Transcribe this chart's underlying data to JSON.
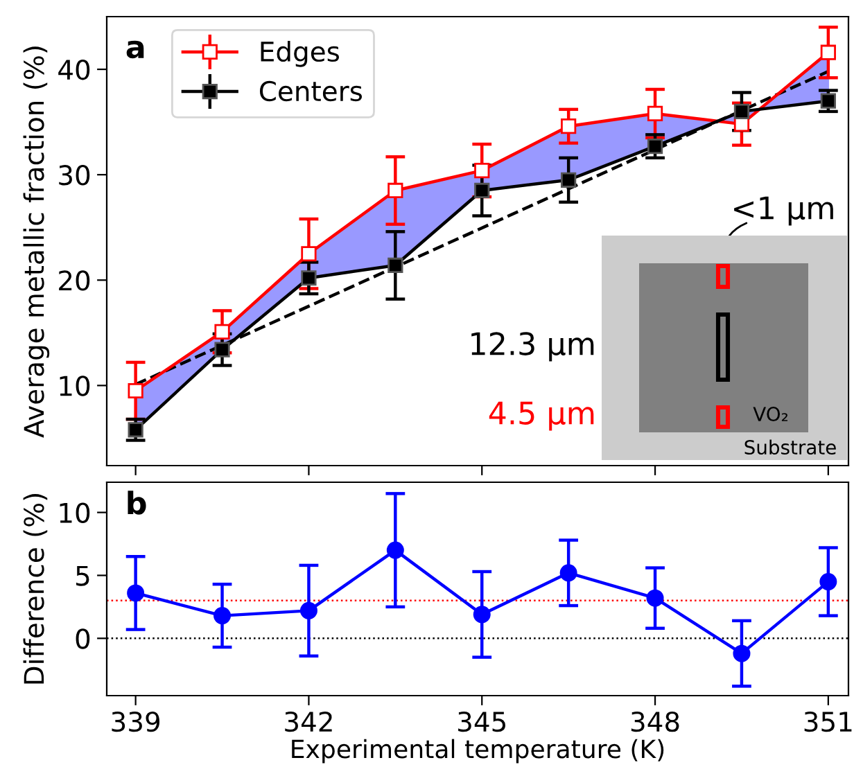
{
  "chart_data": [
    {
      "type": "line",
      "title": "a",
      "ylabel": "Average metallic fraction (%)",
      "x": [
        339,
        340.5,
        342,
        343.5,
        345,
        346.5,
        348,
        349.5,
        351
      ],
      "series": [
        {
          "type": "area",
          "color": "#9999ff",
          "values": [
            9.5,
            15.1,
            22.5,
            28.5,
            30.4,
            34.6,
            35.8,
            34.8,
            41.6
          ]
        },
        {
          "name": "Edges",
          "color": "#ff0000",
          "marker": "square",
          "values": [
            9.5,
            15.1,
            22.5,
            28.5,
            30.4,
            34.6,
            35.8,
            34.8,
            41.6
          ],
          "errors": [
            2.7,
            2.0,
            3.3,
            3.2,
            2.5,
            1.6,
            2.3,
            2.0,
            2.4
          ]
        },
        {
          "name": "Centers",
          "color": "#000000",
          "marker": "square",
          "values": [
            5.8,
            13.4,
            20.2,
            21.4,
            28.5,
            29.5,
            32.7,
            36.0,
            37.0
          ],
          "errors": [
            1.0,
            1.5,
            1.5,
            3.2,
            2.4,
            2.1,
            1.1,
            1.8,
            1.0
          ]
        },
        {
          "type": "line",
          "color": "#000000",
          "line_style": "dashed",
          "marker": "none",
          "x": [
            339,
            351
          ],
          "values": [
            10.1,
            39.8
          ]
        }
      ],
      "xlim": [
        338.5,
        351.35
      ],
      "xticks": [
        339,
        342,
        345,
        348,
        351
      ],
      "ylim": [
        2.4,
        45
      ],
      "yticks": [
        10,
        20,
        30,
        40
      ],
      "tick_labels": "y",
      "legend": "top left",
      "grid": false,
      "annotations": [
        "<1 μm",
        "12.3 μm",
        "4.5 μm",
        "VO₂",
        "Substrate"
      ]
    },
    {
      "type": "line",
      "title": "b",
      "xlabel": "Experimental temperature (K)",
      "ylabel": "Difference (%)",
      "x": [
        339,
        340.5,
        342,
        343.5,
        345,
        346.5,
        348,
        349.5,
        351
      ],
      "series": [
        {
          "color": "#0000ff",
          "marker": "circle",
          "values": [
            3.6,
            1.8,
            2.2,
            7.0,
            1.9,
            5.2,
            3.2,
            -1.2,
            4.5
          ],
          "errors": [
            2.9,
            2.5,
            3.6,
            4.5,
            3.4,
            2.6,
            2.4,
            2.6,
            2.7
          ]
        }
      ],
      "ref_lines": [
        {
          "axis": "y",
          "value": 3,
          "color": "#ff0000",
          "line_style": "dotted"
        },
        {
          "axis": "y",
          "value": 0,
          "color": "#000000",
          "line_style": "dotted"
        }
      ],
      "xlim": [
        338.5,
        351.35
      ],
      "xticks": [
        339,
        342,
        345,
        348,
        351
      ],
      "ylim": [
        -4.55,
        12.4
      ],
      "yticks": [
        0,
        5,
        10
      ],
      "legend": false,
      "grid": false
    }
  ]
}
